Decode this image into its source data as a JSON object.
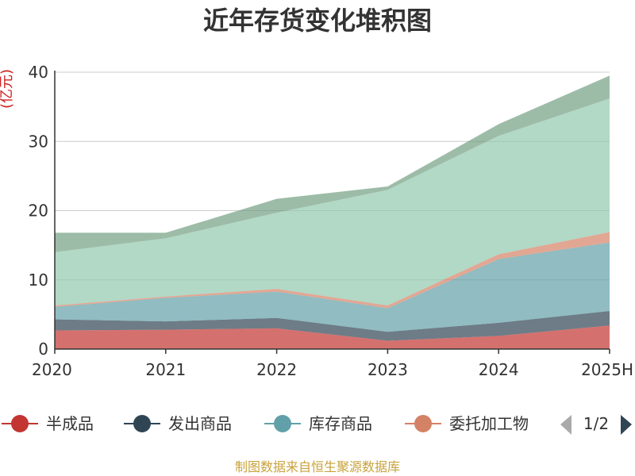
{
  "chart_data": {
    "type": "area",
    "stacked": true,
    "title": "近年存货变化堆积图",
    "ylabel": "(亿元)",
    "xlabel": "",
    "categories": [
      "2020",
      "2021",
      "2022",
      "2023",
      "2024",
      "2025H"
    ],
    "ylim": [
      0,
      40
    ],
    "yticks": [
      0,
      10,
      20,
      30,
      40
    ],
    "grid": true,
    "series": [
      {
        "name": "半成品",
        "color": "#c23531",
        "values": [
          2.7,
          2.8,
          3.0,
          1.2,
          1.9,
          3.4
        ]
      },
      {
        "name": "发出商品",
        "color": "#2f4554",
        "values": [
          1.6,
          1.2,
          1.5,
          1.3,
          1.9,
          2.1
        ]
      },
      {
        "name": "库存商品",
        "color": "#61a0a8",
        "values": [
          1.8,
          3.4,
          3.8,
          3.4,
          9.2,
          9.9
        ]
      },
      {
        "name": "委托加工物资",
        "color": "#d48265",
        "values": [
          0.2,
          0.2,
          0.4,
          0.4,
          0.7,
          1.5
        ]
      },
      {
        "name": "",
        "color": "#91c7ae",
        "values": [
          7.7,
          8.4,
          11.0,
          16.7,
          17.1,
          19.3
        ]
      },
      {
        "name": "",
        "color": "#749f83",
        "values": [
          2.8,
          0.8,
          2.0,
          0.5,
          1.7,
          3.3
        ]
      }
    ],
    "legend": {
      "position": "bottom",
      "visible_items": [
        "半成品",
        "发出商品",
        "库存商品",
        "委托加工物"
      ],
      "page": "1/2"
    }
  },
  "source": "制图数据来自恒生聚源数据库",
  "icons": {
    "pager_prev": "triangle-left-icon",
    "pager_next": "triangle-right-icon"
  }
}
